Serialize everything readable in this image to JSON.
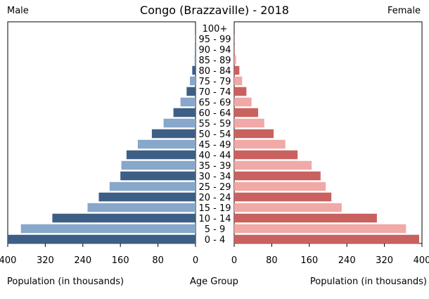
{
  "chart_data": {
    "type": "bar",
    "title": "Congo (Brazzaville) - 2018",
    "left_label": "Male",
    "right_label": "Female",
    "xlabel_left": "Population (in thousands)",
    "xlabel_center": "Age Group",
    "xlabel_right": "Population (in thousands)",
    "age_groups": [
      "100+",
      "95 - 99",
      "90 - 94",
      "85 - 89",
      "80 - 84",
      "75 - 79",
      "70 - 74",
      "65 - 69",
      "60 - 64",
      "55 - 59",
      "50 - 54",
      "45 - 49",
      "40 - 44",
      "35 - 39",
      "30 - 34",
      "25 - 29",
      "20 - 24",
      "15 - 19",
      "10 - 14",
      "5 - 9",
      "0 - 4"
    ],
    "series": [
      {
        "name": "Male",
        "values": [
          0.1,
          0.3,
          1,
          2,
          7,
          12,
          19,
          32,
          47,
          68,
          93,
          123,
          147,
          158,
          160,
          183,
          206,
          230,
          305,
          372,
          400
        ]
      },
      {
        "name": "Female",
        "values": [
          0.1,
          0.3,
          1,
          4,
          11,
          17,
          26,
          37,
          51,
          64,
          84,
          109,
          135,
          165,
          184,
          195,
          207,
          229,
          304,
          366,
          394
        ]
      }
    ],
    "xlim_left": [
      400,
      0
    ],
    "xlim_right": [
      0,
      400
    ],
    "left_ticks": [
      "400",
      "320",
      "240",
      "160",
      "80",
      "0"
    ],
    "right_ticks": [
      "0",
      "80",
      "160",
      "240",
      "320",
      "400"
    ],
    "colors": {
      "male_dark": "#3d5f85",
      "male_light": "#87a7cb",
      "female_dark": "#c9615f",
      "female_light": "#f0a9a6"
    }
  }
}
